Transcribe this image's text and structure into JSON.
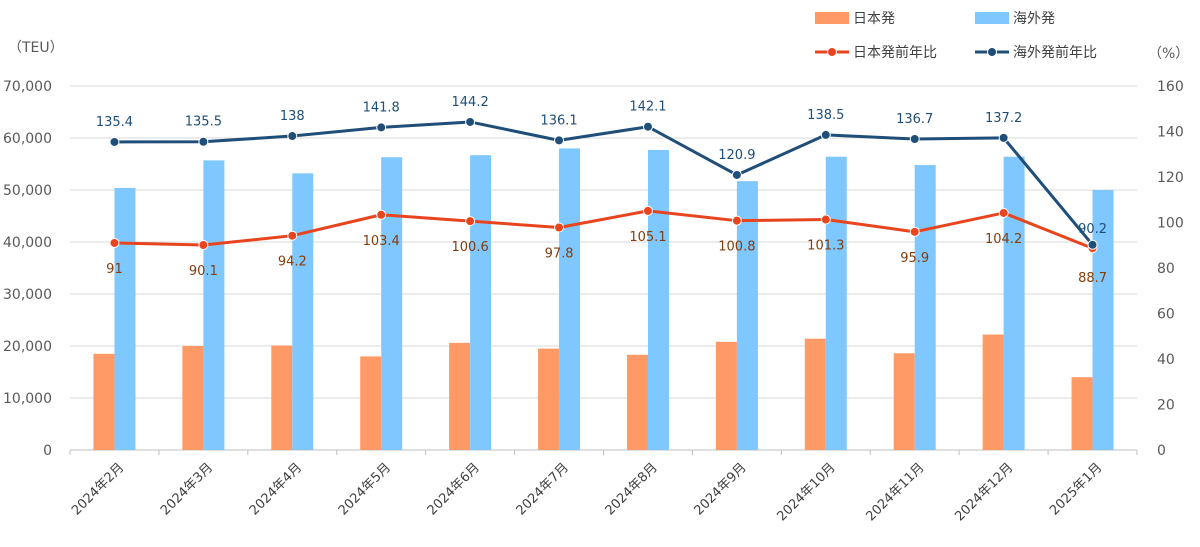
{
  "chart_data": {
    "type": "bar+line",
    "categories": [
      "2024年2月",
      "2024年3月",
      "2024年4月",
      "2024年5月",
      "2024年6月",
      "2024年7月",
      "2024年8月",
      "2024年9月",
      "2024年10月",
      "2024年11月",
      "2024年12月",
      "2025年1月"
    ],
    "left_axis": {
      "unit_label": "（TEU）",
      "min": 0,
      "max": 70000,
      "step": 10000,
      "ticks": [
        "0",
        "10,000",
        "20,000",
        "30,000",
        "40,000",
        "50,000",
        "60,000",
        "70,000"
      ]
    },
    "right_axis": {
      "unit_label": "（%）",
      "min": 0,
      "max": 160,
      "step": 20,
      "ticks": [
        "0",
        "20",
        "40",
        "60",
        "80",
        "100",
        "120",
        "140",
        "160"
      ]
    },
    "grid": true,
    "legend_position": "top-right",
    "series": [
      {
        "name": "日本発",
        "kind": "bar",
        "axis": "left",
        "color": "#FF9966",
        "values": [
          18500,
          20000,
          20100,
          18000,
          20600,
          19500,
          18300,
          20800,
          21400,
          18600,
          22200,
          14000
        ]
      },
      {
        "name": "海外発",
        "kind": "bar",
        "axis": "left",
        "color": "#7FC8FF",
        "values": [
          50400,
          55700,
          53200,
          56300,
          56700,
          58000,
          57700,
          51700,
          56400,
          54800,
          56400,
          50000
        ]
      },
      {
        "name": "日本発前年比",
        "kind": "line",
        "axis": "right",
        "color": "#E8451E",
        "label_color": "#843C0C",
        "values": [
          91,
          90.1,
          94.2,
          103.4,
          100.6,
          97.8,
          105.1,
          100.8,
          101.3,
          95.9,
          104.2,
          88.7
        ],
        "labels": [
          "91",
          "90.1",
          "94.2",
          "103.4",
          "100.6",
          "97.8",
          "105.1",
          "100.8",
          "101.3",
          "95.9",
          "104.2",
          "88.7"
        ]
      },
      {
        "name": "海外発前年比",
        "kind": "line",
        "axis": "right",
        "color": "#1F4E79",
        "label_color": "#1F4E79",
        "values": [
          135.4,
          135.5,
          138,
          141.8,
          144.2,
          136.1,
          142.1,
          120.9,
          138.5,
          136.7,
          137.2,
          90.2
        ],
        "labels": [
          "135.4",
          "135.5",
          "138",
          "141.8",
          "144.2",
          "136.1",
          "142.1",
          "120.9",
          "138.5",
          "136.7",
          "137.2",
          "90.2"
        ]
      }
    ]
  }
}
